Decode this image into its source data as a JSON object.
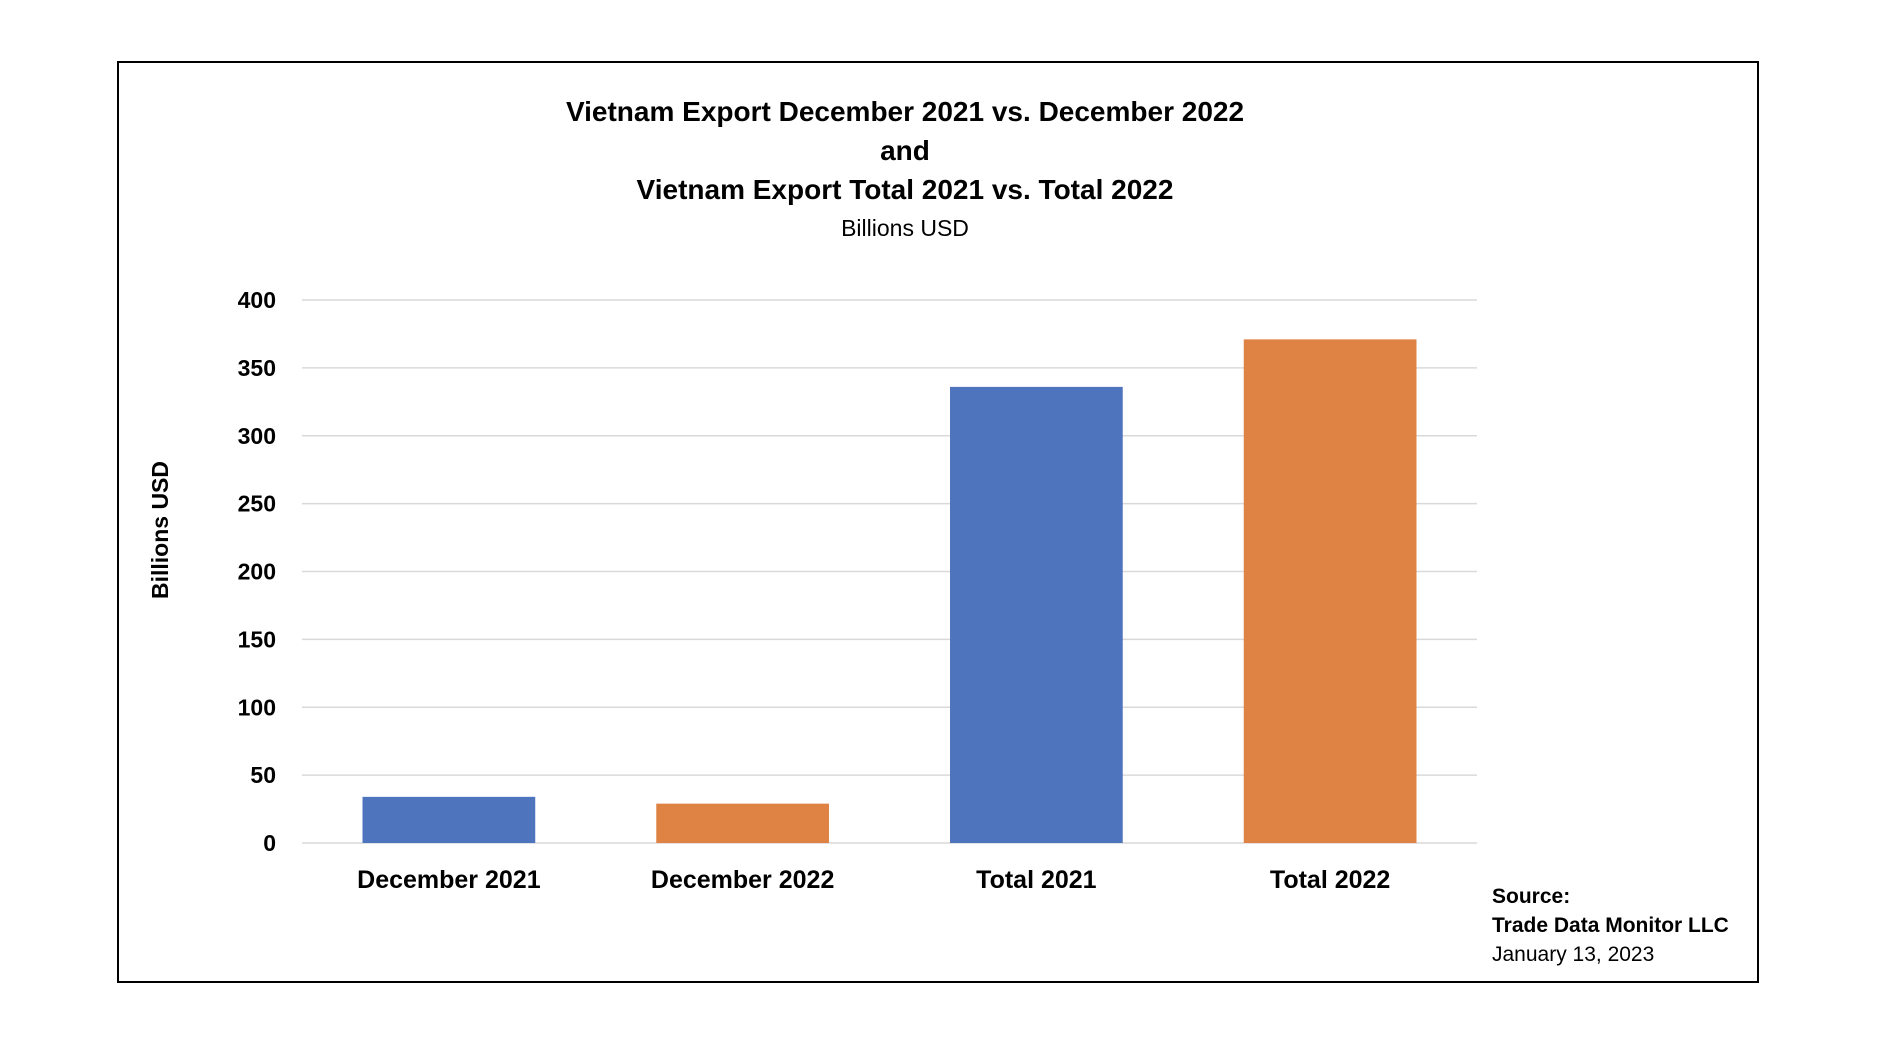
{
  "chart_data": {
    "type": "bar",
    "title_lines": [
      "Vietnam Export December 2021 vs. December 2022",
      "and",
      "Vietnam Export Total 2021 vs. Total 2022"
    ],
    "subtitle": "Billions USD",
    "ylabel": "Billions USD",
    "xlabel": "",
    "ylim": [
      0,
      400
    ],
    "yticks": [
      "0",
      "50",
      "100",
      "150",
      "200",
      "250",
      "300",
      "350",
      "400"
    ],
    "ytick_values": [
      0,
      50,
      100,
      150,
      200,
      250,
      300,
      350,
      400
    ],
    "grid": true,
    "categories": [
      "December 2021",
      "December 2022",
      "Total 2021",
      "Total 2022"
    ],
    "values": [
      34,
      29,
      336,
      371
    ],
    "bar_colors": [
      "#4e74be",
      "#df8345",
      "#4e74be",
      "#df8345"
    ]
  },
  "source": {
    "label": "Source:",
    "name": "Trade Data Monitor LLC",
    "date": "January 13, 2023"
  }
}
